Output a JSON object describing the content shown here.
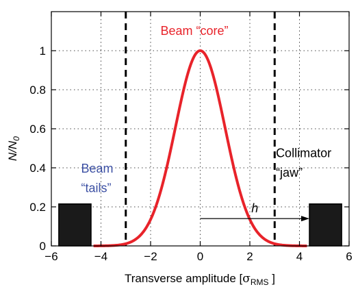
{
  "chart_data": {
    "type": "line",
    "title": "",
    "xlabel": {
      "main": "Transverse amplitude [",
      "sym": "σ",
      "sub": "RMS",
      "close": " ]"
    },
    "ylabel": {
      "n": "N",
      "slash": "/",
      "n0": "N",
      "sub": "0"
    },
    "xlim": [
      -6,
      6
    ],
    "ylim": [
      0,
      1.2
    ],
    "x_ticks": [
      -6,
      -4,
      -2,
      0,
      2,
      4,
      6
    ],
    "y_ticks": [
      0,
      0.2,
      0.4,
      0.6,
      0.8,
      1
    ],
    "x_grid": [
      -4,
      -2,
      0,
      2,
      4
    ],
    "y_grid": [
      0.2,
      0.4,
      0.6,
      0.8,
      1.0,
      1.2
    ],
    "grid": true,
    "series": [
      {
        "function": "gaussian",
        "mean": 0,
        "sigma": 1,
        "amplitude": 1,
        "x_range": [
          -4.3,
          4.3
        ],
        "color": "#e8232a"
      }
    ],
    "vertical_lines": [
      {
        "x": -3,
        "style": "dashed",
        "color": "#000000"
      },
      {
        "x": 3,
        "style": "dashed",
        "color": "#000000"
      }
    ],
    "blocks": [
      {
        "x_range": [
          -5.7,
          -4.4
        ],
        "y_range": [
          0,
          0.215
        ],
        "color": "#1a1a1a"
      },
      {
        "x_range": [
          4.4,
          5.7
        ],
        "y_range": [
          0,
          0.215
        ],
        "color": "#1a1a1a"
      }
    ],
    "arrow": {
      "from": [
        0,
        0.14
      ],
      "to": [
        4.4,
        0.14
      ],
      "label": "h"
    },
    "annotations": [
      {
        "text": "Beam “core”",
        "x": -1.6,
        "y": 1.08,
        "color": "#e8232a"
      },
      {
        "text": "Beam",
        "x": -4.8,
        "y": 0.375,
        "color": "#3b4fa3"
      },
      {
        "text": "“tails”",
        "x": -4.8,
        "y": 0.275,
        "color": "#3b4fa3"
      },
      {
        "text": "Collimator",
        "x": 3.05,
        "y": 0.455,
        "color": "#000000"
      },
      {
        "text": "“jaw”",
        "x": 3.05,
        "y": 0.355,
        "color": "#000000"
      }
    ]
  }
}
